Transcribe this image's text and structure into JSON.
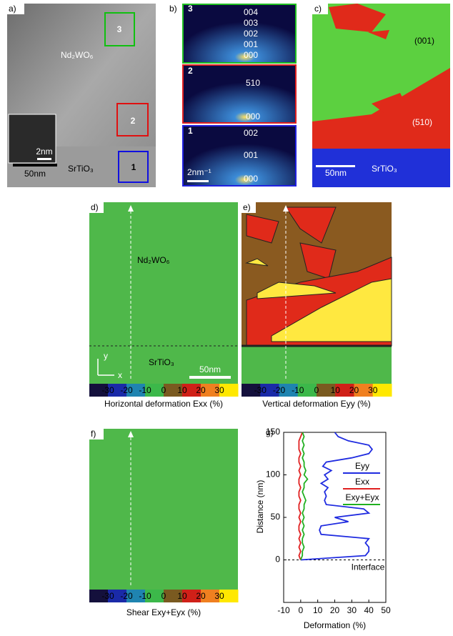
{
  "panels": {
    "a": {
      "label": "a)",
      "material_top": "Nd₂WO₆",
      "material_bottom": "SrTiO₃",
      "scale": "50nm",
      "inset_scale": "2nm",
      "boxes": [
        "3",
        "2",
        "1"
      ]
    },
    "b": {
      "label": "b)",
      "scale": "2nm⁻¹",
      "sub": [
        {
          "number": "3",
          "spots": [
            "004",
            "003",
            "002",
            "001",
            "000"
          ]
        },
        {
          "number": "2",
          "spots": [
            "510",
            "000"
          ]
        },
        {
          "number": "1",
          "spots": [
            "002",
            "001",
            "000"
          ]
        }
      ]
    },
    "c": {
      "label": "c)",
      "region_top": "(001)",
      "region_bottom": "(510)",
      "material": "SrTiO₃",
      "scale": "50nm"
    },
    "d": {
      "label": "d)",
      "material_top": "Nd₂WO₆",
      "material_bottom": "SrTiO₃",
      "scale": "50nm",
      "axis_y": "y",
      "axis_x": "x",
      "caption": "Horizontal deformation Exx (%)"
    },
    "e": {
      "label": "e)",
      "caption": "Vertical deformation Eyy (%)"
    },
    "f": {
      "label": "f)",
      "caption": "Shear Exy+Eyx (%)"
    }
  },
  "colorbar": {
    "labels": [
      "-30",
      "-20",
      "-10",
      "0",
      "10",
      "20",
      "30"
    ]
  },
  "chart_data": {
    "type": "line",
    "label": "g)",
    "orientation": "horizontal",
    "xlabel": "Deformation (%)",
    "ylabel": "Distance (nm)",
    "annotation": "Interface",
    "y": [
      0,
      5,
      10,
      15,
      20,
      25,
      30,
      35,
      40,
      45,
      50,
      55,
      60,
      65,
      70,
      75,
      80,
      85,
      90,
      95,
      100,
      105,
      110,
      115,
      120,
      125,
      130,
      135,
      140,
      145,
      150
    ],
    "series": [
      {
        "name": "Eyy",
        "color": "#1f2be0",
        "values": [
          0,
          38,
          40,
          40,
          38,
          40,
          12,
          11,
          12,
          28,
          20,
          40,
          37,
          15,
          14,
          15,
          14,
          16,
          12,
          16,
          14,
          18,
          13,
          15,
          30,
          40,
          42,
          40,
          28,
          22,
          20
        ]
      },
      {
        "name": "Exx",
        "color": "#e02020",
        "values": [
          0,
          -1,
          0,
          -1,
          0,
          -1,
          0,
          -1,
          -1,
          0,
          -1,
          0,
          -1,
          -1,
          0,
          -1,
          -1,
          0,
          -1,
          -1,
          0,
          -1,
          0,
          -1,
          -1,
          0,
          -1,
          -1,
          -1,
          0,
          1
        ]
      },
      {
        "name": "Exy+Eyx",
        "color": "#20b020",
        "values": [
          0,
          1,
          1,
          2,
          1,
          1,
          2,
          1,
          2,
          1,
          2,
          1,
          2,
          2,
          3,
          2,
          1,
          2,
          2,
          4,
          2,
          3,
          2,
          2,
          1,
          2,
          1,
          2,
          1,
          2,
          1
        ]
      }
    ],
    "xlim": [
      -10,
      50
    ],
    "xticks": [
      -10,
      0,
      10,
      20,
      30,
      40,
      50
    ],
    "ylim": [
      -50,
      150
    ],
    "yticks": [
      0,
      50,
      100,
      150
    ]
  }
}
